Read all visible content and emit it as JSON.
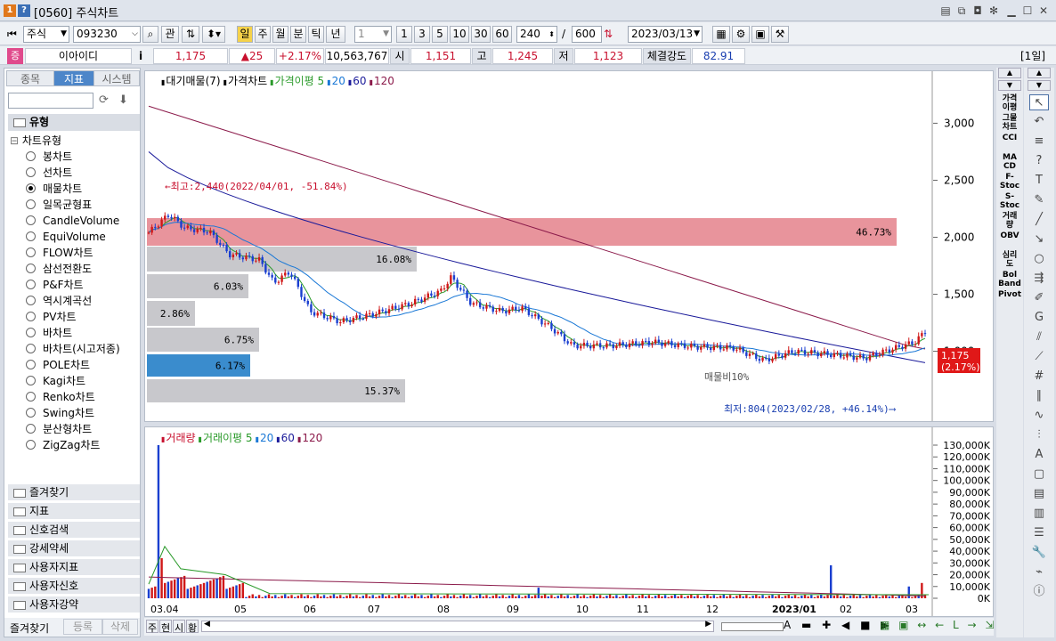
{
  "window": {
    "badge1": "1",
    "badge2": "?",
    "title": "[0560] 주식차트"
  },
  "toolbar": {
    "market": "주식",
    "code": "093230",
    "btn_gwan": "관",
    "periods": [
      "일",
      "주",
      "월",
      "분",
      "틱",
      "년"
    ],
    "interval": "1",
    "nums": [
      "1",
      "3",
      "5",
      "10",
      "30",
      "60"
    ],
    "count": "240",
    "slash": "/",
    "total": "600",
    "date": "2023/03/13"
  },
  "pricebar": {
    "name": "이아이디",
    "i": "i",
    "price": "1,175",
    "change": "▲25",
    "rate": "+2.17%",
    "volume": "10,563,767",
    "open_label": "시",
    "open": "1,151",
    "high_label": "고",
    "high": "1,245",
    "low_label": "저",
    "low": "1,123",
    "strength_label": "체결강도",
    "strength": "82.91",
    "period_tag": "[1일]"
  },
  "left": {
    "tabs": [
      "종목",
      "지표",
      "시스템"
    ],
    "type_header": "유형",
    "chart_type_folder": "차트유형",
    "chart_types": [
      "봉차트",
      "선차트",
      "매물차트",
      "일목균형표",
      "CandleVolume",
      "EquiVolume",
      "FLOW차트",
      "삼선전환도",
      "P&F차트",
      "역시계곡선",
      "PV차트",
      "바차트",
      "바차트(시고저종)",
      "POLE차트",
      "Kagi차트",
      "Renko차트",
      "Swing차트",
      "분산형차트",
      "ZigZag차트"
    ],
    "selected_index": 2,
    "sections": [
      "즐겨찾기",
      "지표",
      "신호검색",
      "강세약세",
      "사용자지표",
      "사용자신호",
      "사용자강약"
    ],
    "bottom": [
      "즐겨찾기",
      "등록",
      "삭제"
    ]
  },
  "main": {
    "legend": [
      {
        "t": "대기매물(7)",
        "c": "#000"
      },
      {
        "t": "가격차트",
        "c": "#000"
      },
      {
        "t": "가격이평 5",
        "c": "#2a9a2a"
      },
      {
        "t": "20",
        "c": "#1a78d6"
      },
      {
        "t": "60",
        "c": "#1a1a9a"
      },
      {
        "t": "120",
        "c": "#8b1a4a"
      }
    ],
    "y_ticks": [
      "3,000",
      "2,500",
      "2,000",
      "1,500",
      "1,000"
    ],
    "high_note": "←최고:2,440(2022/04/01, -51.84%)",
    "low_note": "최저:804(2023/02/28, +46.14%)⟶",
    "mid_note": "매물비10%",
    "current": "1,175",
    "current_pct": "(2.17%)",
    "volume_profile": [
      {
        "pct": "46.73%",
        "highlight": "#e8949c"
      },
      {
        "pct": "16.08%",
        "highlight": ""
      },
      {
        "pct": "6.03%",
        "highlight": ""
      },
      {
        "pct": "2.86%",
        "highlight": ""
      },
      {
        "pct": "6.75%",
        "highlight": ""
      },
      {
        "pct": "6.17%",
        "highlight": "#3a8ccd"
      },
      {
        "pct": "15.37%",
        "highlight": ""
      }
    ],
    "price_range": [
      700,
      3300
    ]
  },
  "volume": {
    "legend": [
      {
        "t": "거래량",
        "c": "#c8102e"
      },
      {
        "t": "거래이평 5",
        "c": "#2a9a2a"
      },
      {
        "t": "20",
        "c": "#1a78d6"
      },
      {
        "t": "60",
        "c": "#1a1a9a"
      },
      {
        "t": "120",
        "c": "#8b1a4a"
      }
    ],
    "y_ticks": [
      "130,000K",
      "120,000K",
      "110,000K",
      "100,000K",
      "90,000K",
      "80,000K",
      "70,000K",
      "60,000K",
      "50,000K",
      "40,000K",
      "30,000K",
      "20,000K",
      "10,000K",
      "0K"
    ]
  },
  "x_axis": [
    "03.04",
    "05",
    "06",
    "07",
    "08",
    "09",
    "10",
    "11",
    "12",
    "2023/01",
    "02",
    "03"
  ],
  "bottom": {
    "tabs": [
      "주",
      "현",
      "시",
      "황"
    ]
  },
  "right1": [
    "가격\n이평",
    "그물\n차트",
    "CCI",
    "MA\nCD",
    "F-\nStoc",
    "S-\nStoc",
    "거래\n량",
    "OBV",
    "심리\n도",
    "Bol\nBand",
    "Pivot"
  ]
}
